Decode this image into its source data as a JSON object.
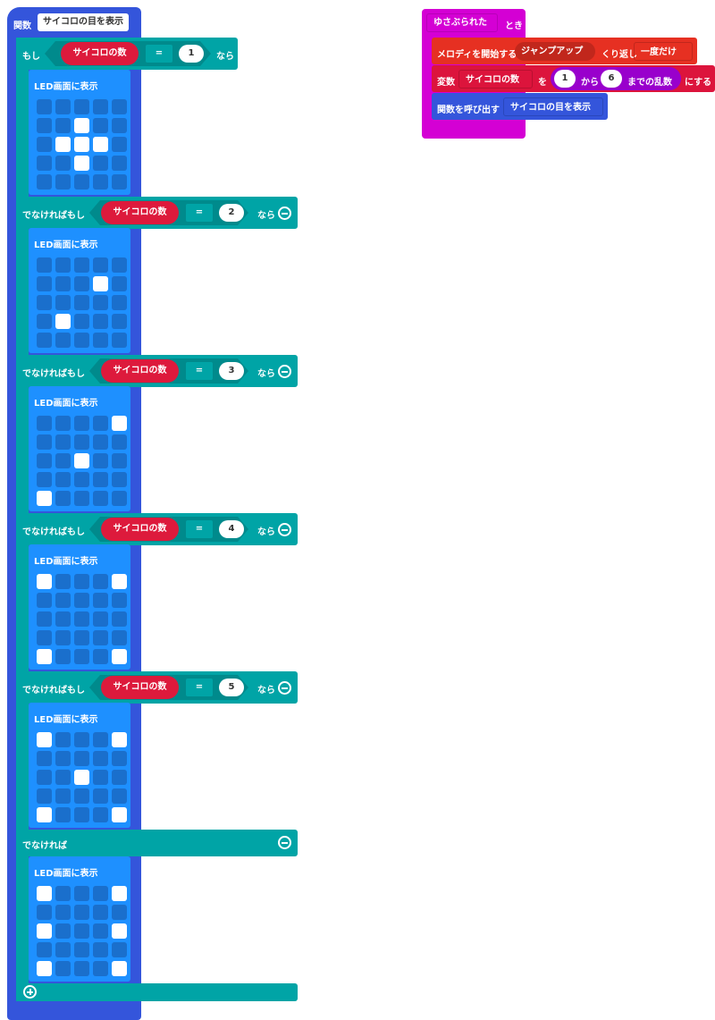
{
  "function_block": {
    "label": "関数",
    "name": "サイコロの目を表示",
    "color": "#3455db"
  },
  "if_block": {
    "color": "#00a4a6",
    "branches": [
      {
        "label": "もし",
        "variable": "サイコロの数",
        "operator": "=",
        "value": "1",
        "then": "なら",
        "removable": false
      },
      {
        "label": "でなければもし",
        "variable": "サイコロの数",
        "operator": "=",
        "value": "2",
        "then": "なら",
        "removable": true
      },
      {
        "label": "でなければもし",
        "variable": "サイコロの数",
        "operator": "=",
        "value": "3",
        "then": "なら",
        "removable": true
      },
      {
        "label": "でなければもし",
        "variable": "サイコロの数",
        "operator": "=",
        "value": "4",
        "then": "なら",
        "removable": true
      },
      {
        "label": "でなければもし",
        "variable": "サイコロの数",
        "operator": "=",
        "value": "5",
        "then": "なら",
        "removable": true
      }
    ],
    "else_label": "でなければ",
    "add_icon": "plus-circle-icon",
    "remove_icon": "minus-circle-icon"
  },
  "led_blocks": [
    {
      "label": "LED画面に表示",
      "pattern": [
        ".....",
        "..#..",
        ".###.",
        "..#..",
        "....."
      ]
    },
    {
      "label": "LED画面に表示",
      "pattern": [
        ".....",
        "...#.",
        ".....",
        ".#...",
        "....."
      ]
    },
    {
      "label": "LED画面に表示",
      "pattern": [
        "....#",
        ".....",
        "..#..",
        ".....",
        "#...."
      ]
    },
    {
      "label": "LED画面に表示",
      "pattern": [
        "#...#",
        ".....",
        ".....",
        ".....",
        "#...#"
      ]
    },
    {
      "label": "LED画面に表示",
      "pattern": [
        "#...#",
        ".....",
        "..#..",
        ".....",
        "#...#"
      ]
    },
    {
      "label": "LED画面に表示",
      "pattern": [
        "#...#",
        ".....",
        "#...#",
        ".....",
        "#...#"
      ]
    }
  ],
  "event_block": {
    "event": "ゆさぶられた",
    "suffix": "とき",
    "color": "#d400d4",
    "melody": {
      "label": "メロディを開始する",
      "melody": "ジャンプアップ",
      "repeat_label": "くり返し",
      "repeat": "一度だけ",
      "color": "#e63022"
    },
    "set_var": {
      "label": "変数",
      "variable": "サイコロの数",
      "to": "を",
      "from": "1",
      "from_label": "から",
      "max": "6",
      "random_label": "までの乱数",
      "suffix": "にする",
      "color": "#dc143c"
    },
    "call": {
      "label": "関数を呼び出す",
      "function": "サイコロの目を表示"
    }
  }
}
